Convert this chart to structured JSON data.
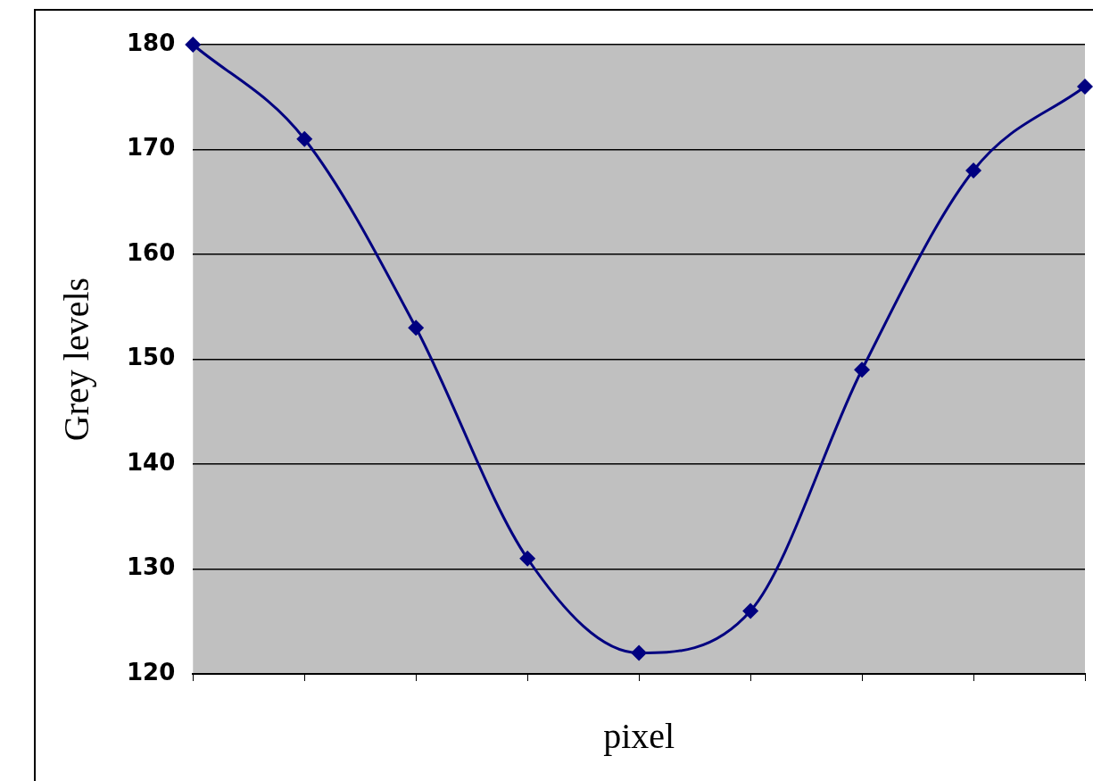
{
  "chart_data": {
    "type": "line",
    "xlabel": "pixel",
    "ylabel": "Grey levels",
    "categories": [
      null,
      null,
      null,
      null,
      null,
      null,
      null,
      null,
      null
    ],
    "series": [
      {
        "color": "#000080",
        "values": [
          180,
          171,
          153,
          131,
          122,
          126,
          149,
          168,
          176
        ]
      }
    ],
    "ylim": [
      120,
      180
    ],
    "yticks": [
      120,
      130,
      140,
      150,
      160,
      170,
      180
    ],
    "grid": "y",
    "marker": "diamond",
    "tick_labels": "y"
  }
}
